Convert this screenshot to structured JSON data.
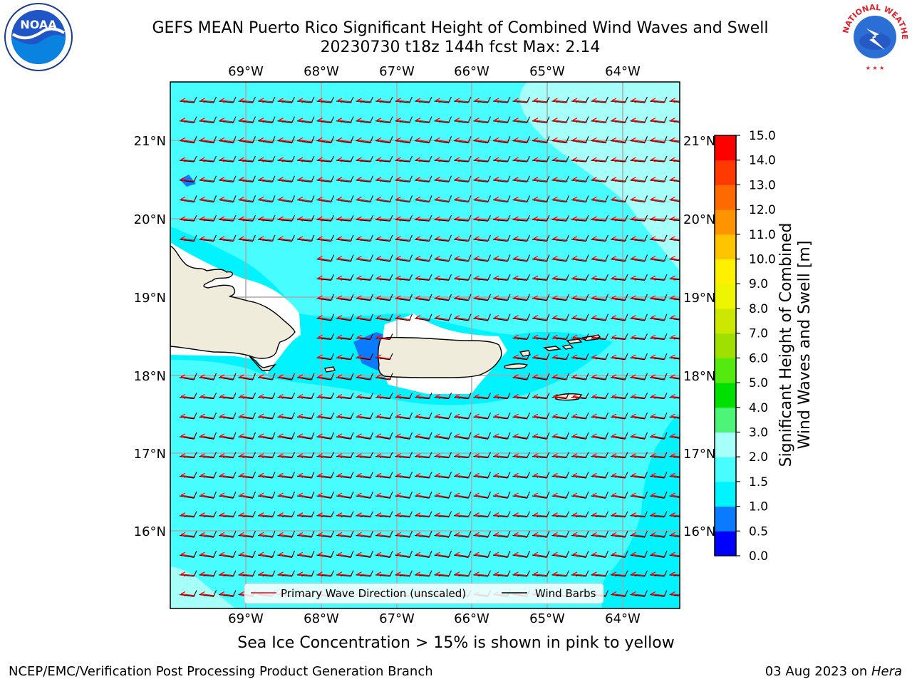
{
  "header": {
    "title_line1": "GEFS MEAN Puerto Rico Significant Height of Combined Wind Waves and Swell",
    "title_line2": "20230730 t18z 144h fcst   Max: 2.14"
  },
  "logos": {
    "left": "noaa-logo",
    "left_text": "NOAA",
    "right": "nws-logo",
    "right_text": "NATIONAL WEATHER SERVICE"
  },
  "map": {
    "lon_labels": [
      "69°W",
      "68°W",
      "67°W",
      "66°W",
      "65°W",
      "64°W"
    ],
    "lat_labels": [
      "21°N",
      "20°N",
      "19°N",
      "18°N",
      "17°N",
      "16°N"
    ],
    "lon_range": [
      -70.0,
      -63.25
    ],
    "lat_range": [
      15.0,
      21.75
    ],
    "ocean_colors": {
      "0.5-1.0": "#0a7aff",
      "1.0-1.5": "#00f3ff",
      "1.5-2.0": "#48fdff",
      "2.0-3.0": "#a7fff9"
    },
    "land_color": "#efecdc",
    "grid": true
  },
  "legend": {
    "items": [
      {
        "label": "Primary Wave Direction (unscaled)",
        "color": "#ff0000"
      },
      {
        "label": "Wind Barbs",
        "color": "#000000"
      }
    ]
  },
  "colorbar": {
    "label_line1": "Significant Height of Combined",
    "label_line2": "Wind Waves and Swell [m]",
    "ticks": [
      "0.0",
      "0.5",
      "1.0",
      "1.5",
      "2.0",
      "3.0",
      "4.0",
      "5.0",
      "6.0",
      "7.0",
      "8.0",
      "9.0",
      "10.0",
      "11.0",
      "12.0",
      "13.0",
      "14.0",
      "15.0"
    ],
    "colors": [
      "#0000ff",
      "#0a7aff",
      "#00f3ff",
      "#48fdff",
      "#a7fff9",
      "#4cf578",
      "#00e000",
      "#55ea0f",
      "#a0e000",
      "#cce800",
      "#eef500",
      "#fff000",
      "#ffc400",
      "#ff9400",
      "#ff6a00",
      "#ff3a00",
      "#ff0000"
    ]
  },
  "footer": {
    "note": "Sea Ice Concentration > 15% is shown in pink to yellow",
    "left": "NCEP/EMC/Verification Post Processing Product Generation Branch",
    "right_date": "03 Aug 2023 on ",
    "right_host": "Hera"
  }
}
